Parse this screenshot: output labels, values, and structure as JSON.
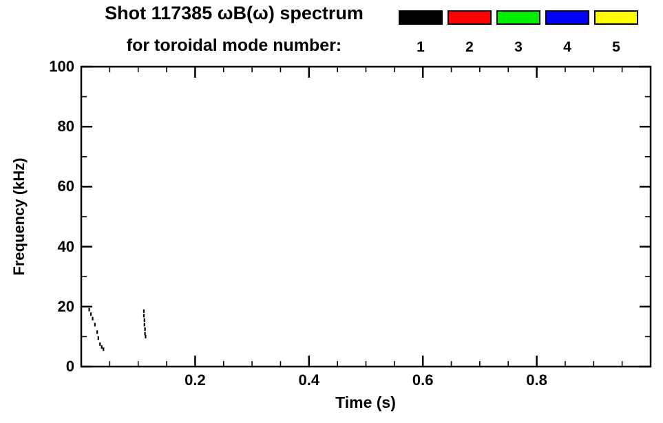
{
  "title": {
    "line1": "Shot 117385 ωB(ω) spectrum",
    "line2": "for toroidal mode number:"
  },
  "legend": {
    "items": [
      {
        "label": "1",
        "color": "#000000"
      },
      {
        "label": "2",
        "color": "#ff0000"
      },
      {
        "label": "3",
        "color": "#00ee00"
      },
      {
        "label": "4",
        "color": "#0000ff"
      },
      {
        "label": "5",
        "color": "#ffff00"
      }
    ]
  },
  "chart_data": {
    "type": "scatter",
    "title": "Shot 117385 ωB(ω) spectrum for toroidal mode number: 1 2 3 4 5",
    "xlabel": "Time (s)",
    "ylabel": "Frequency (kHz)",
    "xlim": [
      0,
      1.0
    ],
    "ylim": [
      0,
      100
    ],
    "grid": false,
    "legend_position": "top-right",
    "x_major_ticks": [
      0.2,
      0.4,
      0.6,
      0.8
    ],
    "x_tick_labels": [
      "0.2",
      "0.4",
      "0.6",
      "0.8"
    ],
    "x_minor_step": 0.05,
    "y_major_ticks": [
      0,
      20,
      40,
      60,
      80,
      100
    ],
    "y_tick_labels": [
      "0",
      "20",
      "40",
      "60",
      "80",
      "100"
    ],
    "y_minor_step": 10,
    "series": [
      {
        "name": "mode 1",
        "color": "#000000",
        "points": [
          [
            0.014,
            19.0
          ],
          [
            0.017,
            17.5
          ],
          [
            0.02,
            16.0
          ],
          [
            0.024,
            14.0
          ],
          [
            0.028,
            11.5
          ],
          [
            0.03,
            9.5
          ],
          [
            0.033,
            7.5
          ],
          [
            0.036,
            6.5
          ],
          [
            0.039,
            5.8
          ],
          [
            0.11,
            18.5
          ],
          [
            0.11,
            17.0
          ],
          [
            0.111,
            15.5
          ],
          [
            0.111,
            14.0
          ],
          [
            0.112,
            12.5
          ],
          [
            0.112,
            11.0
          ],
          [
            0.113,
            10.0
          ]
        ]
      },
      {
        "name": "mode 2",
        "color": "#ff0000",
        "points": []
      },
      {
        "name": "mode 3",
        "color": "#00ee00",
        "points": []
      },
      {
        "name": "mode 4",
        "color": "#0000ff",
        "points": []
      },
      {
        "name": "mode 5",
        "color": "#ffff00",
        "points": []
      }
    ]
  }
}
